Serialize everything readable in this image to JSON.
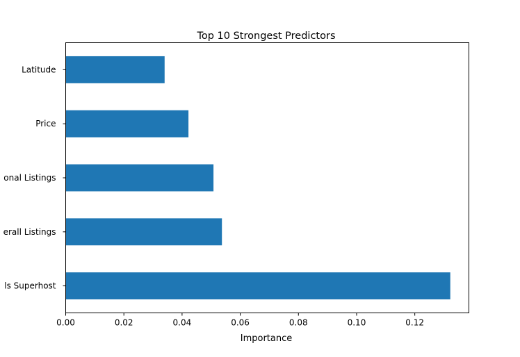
{
  "chart_data": {
    "type": "bar",
    "orientation": "horizontal",
    "title": "Top 10 Strongest Predictors",
    "xlabel": "Importance",
    "ylabel": "",
    "categories": [
      "Latitude",
      "Price",
      "onal Listings",
      "erall Listings",
      "ls Superhost"
    ],
    "values": [
      0.034,
      0.0422,
      0.0508,
      0.0537,
      0.1322
    ],
    "xlim": [
      0.0,
      0.1386
    ],
    "xticks": [
      0.0,
      0.02,
      0.04,
      0.06,
      0.08,
      0.1,
      0.12
    ],
    "xtick_labels": [
      "0.00",
      "0.02",
      "0.04",
      "0.06",
      "0.08",
      "0.10",
      "0.12"
    ],
    "bar_color": "#1f77b4",
    "grid": false,
    "legend": false
  }
}
